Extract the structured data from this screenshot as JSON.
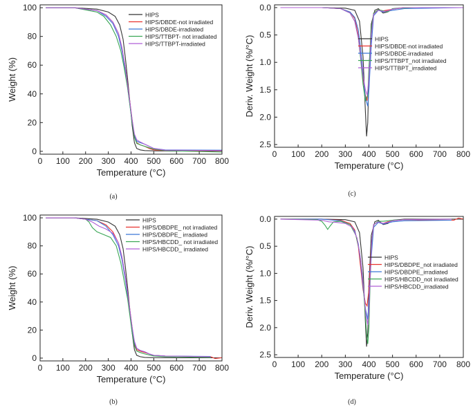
{
  "chart_data": [
    {
      "panel": "(a)",
      "type": "line",
      "xlabel": "Temperature (°C)",
      "ylabel": "Weight (%)",
      "xlim": [
        0,
        800
      ],
      "ylim": [
        -2,
        102
      ],
      "xticks": [
        0,
        100,
        200,
        300,
        400,
        500,
        600,
        700,
        800
      ],
      "yticks": [
        0,
        20,
        40,
        60,
        80,
        100
      ],
      "inverted_y": false,
      "grid": false,
      "legend": "top-right",
      "series": [
        {
          "name": "HIPS",
          "color": "#333333",
          "x": [
            25,
            150,
            250,
            300,
            330,
            350,
            365,
            375,
            385,
            395,
            405,
            415,
            425,
            440,
            460,
            500,
            600,
            800
          ],
          "y": [
            100,
            100,
            99,
            97,
            94,
            88,
            78,
            65,
            50,
            34,
            18,
            6,
            2,
            1,
            0.5,
            0.3,
            0.2,
            0.2
          ]
        },
        {
          "name": "HIPS/DBDE-not irradiated",
          "color": "#e8322e",
          "x": [
            25,
            150,
            250,
            290,
            320,
            345,
            360,
            375,
            385,
            395,
            405,
            415,
            425,
            440,
            460,
            480,
            500,
            550,
            800
          ],
          "y": [
            100,
            100,
            98,
            95,
            90,
            82,
            72,
            58,
            46,
            34,
            22,
            10,
            6,
            4.5,
            3.5,
            2,
            1,
            0.5,
            0.3
          ]
        },
        {
          "name": "HIPS/DBDE-irradiated",
          "color": "#3b78d8",
          "x": [
            25,
            150,
            250,
            290,
            320,
            345,
            360,
            375,
            385,
            395,
            405,
            415,
            425,
            440,
            460,
            480,
            500,
            550,
            800
          ],
          "y": [
            100,
            100,
            98,
            94,
            89,
            80,
            70,
            56,
            44,
            32,
            20,
            11,
            7,
            6,
            5,
            3.5,
            2,
            1,
            0.8
          ]
        },
        {
          "name": "HIPS/TTBPT- not irradiated",
          "color": "#3aa655",
          "x": [
            25,
            150,
            250,
            280,
            310,
            335,
            355,
            370,
            385,
            395,
            405,
            415,
            425,
            440,
            460,
            480,
            500,
            550,
            800
          ],
          "y": [
            100,
            100,
            97,
            94,
            88,
            80,
            70,
            58,
            44,
            32,
            20,
            10,
            5.5,
            4.5,
            3.5,
            2.5,
            1.5,
            0.5,
            -0.5
          ]
        },
        {
          "name": "HIPS/TTBPT-irradiated",
          "color": "#b05fd6",
          "x": [
            25,
            150,
            250,
            290,
            320,
            345,
            360,
            375,
            385,
            395,
            405,
            415,
            425,
            440,
            460,
            480,
            500,
            550,
            800
          ],
          "y": [
            100,
            100,
            98,
            95,
            90,
            82,
            72,
            58,
            46,
            34,
            22,
            12,
            8,
            6.5,
            5,
            3.5,
            2,
            0.8,
            0.5
          ]
        }
      ]
    },
    {
      "panel": "(c)",
      "type": "line",
      "xlabel": "Temperature (°C)",
      "ylabel": "Deriv. Weight (%/°C)",
      "xlim": [
        0,
        800
      ],
      "ylim": [
        -0.05,
        2.55
      ],
      "xticks": [
        0,
        100,
        200,
        300,
        400,
        500,
        600,
        700,
        800
      ],
      "yticks": [
        0.0,
        0.5,
        1.0,
        1.5,
        2.0,
        2.5
      ],
      "inverted_y": true,
      "grid": false,
      "legend": "right",
      "series": [
        {
          "name": "HIPS",
          "color": "#333333",
          "x": [
            25,
            200,
            300,
            340,
            360,
            375,
            385,
            390,
            395,
            400,
            410,
            425,
            440,
            460,
            480,
            500,
            550,
            800
          ],
          "y": [
            0,
            0,
            0.01,
            0.05,
            0.25,
            0.9,
            1.9,
            2.35,
            2.1,
            1.2,
            0.3,
            0.05,
            0.02,
            0.1,
            0.08,
            0.02,
            0,
            0
          ]
        },
        {
          "name": "HIPS/DBDE-not irradiated",
          "color": "#e8322e",
          "x": [
            25,
            200,
            280,
            320,
            340,
            355,
            365,
            375,
            385,
            392,
            400,
            410,
            420,
            440,
            460,
            500,
            550,
            800
          ],
          "y": [
            0,
            0,
            0.02,
            0.08,
            0.2,
            0.5,
            0.9,
            1.3,
            1.6,
            1.7,
            1.3,
            0.5,
            0.1,
            0.04,
            0.06,
            0.03,
            0,
            0
          ]
        },
        {
          "name": "HIPS/DBDE-irradiated",
          "color": "#3b78d8",
          "x": [
            25,
            200,
            280,
            320,
            340,
            355,
            365,
            375,
            385,
            395,
            400,
            410,
            420,
            440,
            460,
            500,
            550,
            800
          ],
          "y": [
            0,
            0,
            0.02,
            0.08,
            0.18,
            0.4,
            0.75,
            1.2,
            1.65,
            1.8,
            1.5,
            0.7,
            0.15,
            0.05,
            0.08,
            0.05,
            0.02,
            0
          ]
        },
        {
          "name": "HIPS/TTBPT_not irradiated",
          "color": "#3aa655",
          "x": [
            25,
            200,
            280,
            320,
            340,
            355,
            365,
            375,
            385,
            395,
            400,
            410,
            420,
            440,
            460,
            480,
            500,
            600,
            800
          ],
          "y": [
            0,
            0,
            0.02,
            0.1,
            0.25,
            0.55,
            0.95,
            1.4,
            1.7,
            1.6,
            1.1,
            0.4,
            0.1,
            0.04,
            0.06,
            0.08,
            0.02,
            0,
            0
          ]
        },
        {
          "name": "HIPS/TTBPT_irradiated",
          "color": "#b05fd6",
          "x": [
            25,
            200,
            280,
            320,
            340,
            355,
            365,
            375,
            385,
            393,
            400,
            410,
            420,
            440,
            460,
            480,
            500,
            550,
            800
          ],
          "y": [
            0,
            0,
            0.02,
            0.1,
            0.25,
            0.55,
            0.9,
            1.25,
            1.5,
            1.6,
            1.3,
            0.5,
            0.12,
            0.05,
            0.07,
            0.06,
            0.03,
            0,
            0
          ]
        }
      ]
    },
    {
      "panel": "(b)",
      "type": "line",
      "xlabel": "Temperature (°C)",
      "ylabel": "Weight (%)",
      "xlim": [
        0,
        800
      ],
      "ylim": [
        -2,
        102
      ],
      "xticks": [
        0,
        100,
        200,
        300,
        400,
        500,
        600,
        700,
        800
      ],
      "yticks": [
        0,
        20,
        40,
        60,
        80,
        100
      ],
      "inverted_y": false,
      "grid": false,
      "legend": "top-right",
      "series": [
        {
          "name": "HIPS",
          "color": "#333333",
          "x": [
            25,
            150,
            250,
            300,
            330,
            350,
            365,
            375,
            385,
            395,
            405,
            415,
            425,
            440,
            460,
            500,
            600,
            800
          ],
          "y": [
            100,
            100,
            99,
            97,
            94,
            88,
            78,
            65,
            50,
            34,
            18,
            6,
            2,
            1,
            0.5,
            0.3,
            0.2,
            0.2
          ]
        },
        {
          "name": "HIPS/DBDPE_ not irradiated",
          "color": "#e8322e",
          "x": [
            25,
            150,
            250,
            290,
            320,
            345,
            360,
            375,
            385,
            395,
            405,
            415,
            425,
            440,
            460,
            480,
            500,
            550,
            750,
            770,
            800
          ],
          "y": [
            100,
            100,
            98,
            95,
            90,
            82,
            72,
            58,
            46,
            34,
            22,
            10,
            6,
            5,
            4,
            3,
            2,
            1.5,
            1,
            -0.3,
            0.3
          ]
        },
        {
          "name": "HIPS/DBDPE_ irradiated",
          "color": "#3b78d8",
          "x": [
            25,
            150,
            250,
            290,
            320,
            345,
            360,
            375,
            385,
            395,
            405,
            415,
            425,
            440,
            460,
            480,
            500,
            550,
            750
          ],
          "y": [
            100,
            100,
            98,
            94,
            88,
            80,
            70,
            56,
            44,
            32,
            20,
            11,
            7,
            5.5,
            4.5,
            3,
            2,
            1.5,
            1.2
          ]
        },
        {
          "name": "HIPS/HBCDD_ not irradiated",
          "color": "#3aa655",
          "x": [
            25,
            150,
            200,
            215,
            230,
            250,
            280,
            310,
            335,
            355,
            370,
            385,
            395,
            405,
            415,
            425,
            440,
            460,
            500,
            550,
            750
          ],
          "y": [
            100,
            100,
            99,
            97,
            93,
            90,
            88,
            86,
            80,
            68,
            55,
            42,
            30,
            18,
            9,
            5,
            4,
            3,
            1.5,
            1,
            0.5
          ]
        },
        {
          "name": "HIPS/HBCDD_ irradiated",
          "color": "#b05fd6",
          "x": [
            25,
            150,
            200,
            230,
            260,
            290,
            320,
            345,
            360,
            375,
            385,
            395,
            405,
            415,
            425,
            440,
            460,
            480,
            500,
            550,
            750
          ],
          "y": [
            100,
            100,
            99,
            97,
            94,
            92,
            89,
            82,
            72,
            58,
            46,
            34,
            22,
            12,
            7,
            5.5,
            4.5,
            3,
            2,
            1.5,
            1
          ]
        }
      ]
    },
    {
      "panel": "(d)",
      "type": "line",
      "xlabel": "Temperature (°C)",
      "ylabel": "Deriv. Weight (%/°C)",
      "xlim": [
        0,
        800
      ],
      "ylim": [
        -0.05,
        2.55
      ],
      "xticks": [
        0,
        100,
        200,
        300,
        400,
        500,
        600,
        700,
        800
      ],
      "yticks": [
        0.0,
        0.5,
        1.0,
        1.5,
        2.0,
        2.5
      ],
      "inverted_y": true,
      "grid": false,
      "legend": "right",
      "series": [
        {
          "name": "HIPS",
          "color": "#333333",
          "x": [
            25,
            200,
            300,
            340,
            360,
            375,
            385,
            390,
            395,
            400,
            410,
            425,
            440,
            460,
            480,
            500,
            550,
            800
          ],
          "y": [
            0,
            0,
            0.01,
            0.05,
            0.25,
            0.9,
            1.9,
            2.35,
            2.1,
            1.2,
            0.3,
            0.05,
            0.02,
            0.1,
            0.08,
            0.02,
            0,
            0
          ]
        },
        {
          "name": "HIPS/DBDPE_not irradiated",
          "color": "#e8322e",
          "x": [
            25,
            200,
            280,
            320,
            340,
            355,
            365,
            375,
            385,
            392,
            400,
            410,
            420,
            440,
            460,
            480,
            500,
            550,
            760,
            780,
            800
          ],
          "y": [
            0,
            0,
            0.02,
            0.08,
            0.2,
            0.5,
            0.9,
            1.3,
            1.55,
            1.6,
            1.3,
            0.5,
            0.1,
            0.05,
            0.08,
            0.05,
            0.03,
            0.01,
            0.02,
            -0.02,
            0
          ]
        },
        {
          "name": "HIPS/DBDPE_irradiated",
          "color": "#3b78d8",
          "x": [
            25,
            200,
            280,
            320,
            340,
            355,
            365,
            375,
            385,
            395,
            400,
            410,
            420,
            440,
            460,
            500,
            550,
            750
          ],
          "y": [
            0,
            0,
            0.03,
            0.1,
            0.22,
            0.45,
            0.8,
            1.25,
            1.65,
            1.85,
            1.5,
            0.7,
            0.15,
            0.06,
            0.09,
            0.05,
            0.03,
            0.02
          ]
        },
        {
          "name": "HIPS/HBCDD_not irradiated",
          "color": "#3aa655",
          "x": [
            25,
            180,
            200,
            215,
            225,
            235,
            250,
            280,
            320,
            345,
            360,
            372,
            382,
            390,
            395,
            400,
            405,
            410,
            420,
            440,
            460,
            500,
            550,
            750
          ],
          "y": [
            0,
            0.01,
            0.04,
            0.12,
            0.19,
            0.13,
            0.05,
            0.04,
            0.1,
            0.3,
            0.6,
            1.0,
            1.6,
            2.1,
            2.3,
            2.0,
            1.2,
            0.5,
            0.1,
            0.04,
            0.04,
            0.02,
            0.01,
            0
          ]
        },
        {
          "name": "HIPS/HBCDD_irradiated",
          "color": "#b05fd6",
          "x": [
            25,
            200,
            230,
            260,
            300,
            330,
            350,
            365,
            378,
            388,
            395,
            400,
            405,
            412,
            420,
            440,
            460,
            480,
            500,
            550,
            750
          ],
          "y": [
            0,
            0.02,
            0.05,
            0.06,
            0.08,
            0.15,
            0.35,
            0.75,
            1.3,
            1.8,
            1.95,
            1.7,
            1.1,
            0.4,
            0.1,
            0.05,
            0.08,
            0.06,
            0.03,
            0.01,
            0
          ]
        }
      ]
    }
  ]
}
